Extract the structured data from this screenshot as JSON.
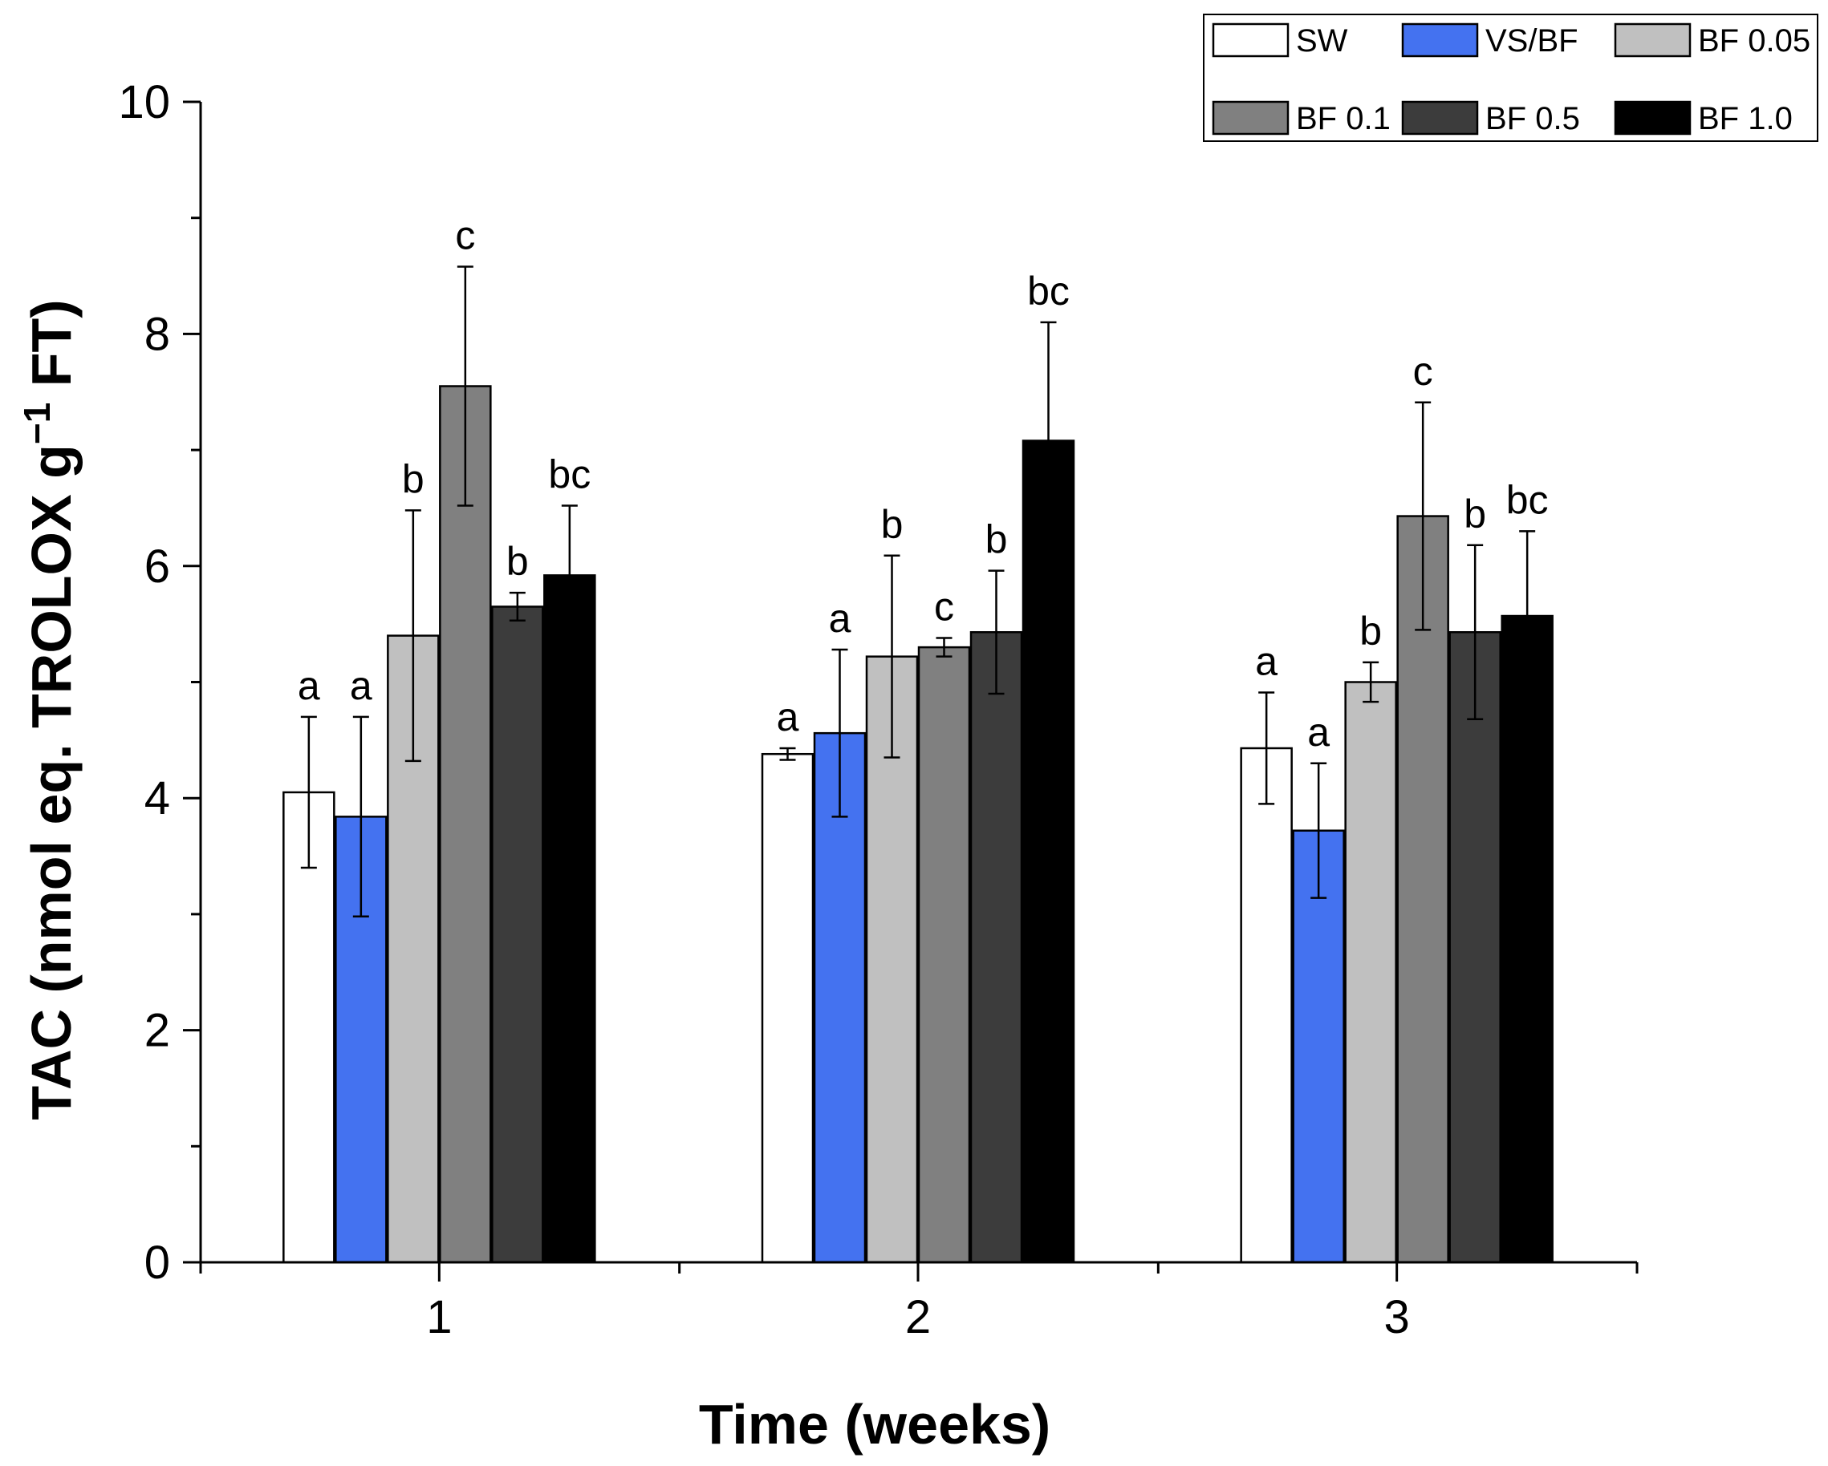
{
  "chart_data": {
    "type": "bar",
    "title": "",
    "xlabel": "Time (weeks)",
    "ylabel": "TAC (nmol eq. TROLOX g",
    "ylabel_superscript": "−1",
    "ylabel_suffix": " FT)",
    "categories": [
      "1",
      "2",
      "3"
    ],
    "ylim": [
      0,
      10
    ],
    "yticks": [
      "0",
      "2",
      "4",
      "6",
      "8",
      "10"
    ],
    "grid": false,
    "legend_position": "top-right",
    "series": [
      {
        "name": "SW",
        "color": "#ffffff",
        "values": [
          4.05,
          4.38,
          4.43
        ],
        "errors": [
          0.65,
          0.05,
          0.48
        ],
        "letters": [
          "a",
          "a",
          "a"
        ]
      },
      {
        "name": "VS/BF",
        "color": "#4472f0",
        "values": [
          3.84,
          4.56,
          3.72
        ],
        "errors": [
          0.86,
          0.72,
          0.58
        ],
        "letters": [
          "a",
          "a",
          "a"
        ]
      },
      {
        "name": "BF 0.05",
        "color": "#c0c0c0",
        "values": [
          5.4,
          5.22,
          5.0
        ],
        "errors": [
          1.08,
          0.87,
          0.17
        ],
        "letters": [
          "b",
          "b",
          "b"
        ]
      },
      {
        "name": "BF 0.1",
        "color": "#808080",
        "values": [
          7.55,
          5.3,
          6.43
        ],
        "errors": [
          1.03,
          0.08,
          0.98
        ],
        "letters": [
          "c",
          "c",
          "c"
        ]
      },
      {
        "name": "BF 0.5",
        "color": "#3c3c3c",
        "values": [
          5.65,
          5.43,
          5.43
        ],
        "errors": [
          0.12,
          0.53,
          0.75
        ],
        "letters": [
          "b",
          "b",
          "b"
        ]
      },
      {
        "name": "BF 1.0",
        "color": "#000000",
        "values": [
          5.92,
          7.08,
          5.57
        ],
        "errors": [
          0.6,
          1.02,
          0.73
        ],
        "letters": [
          "bc",
          "bc",
          "bc"
        ]
      }
    ]
  }
}
